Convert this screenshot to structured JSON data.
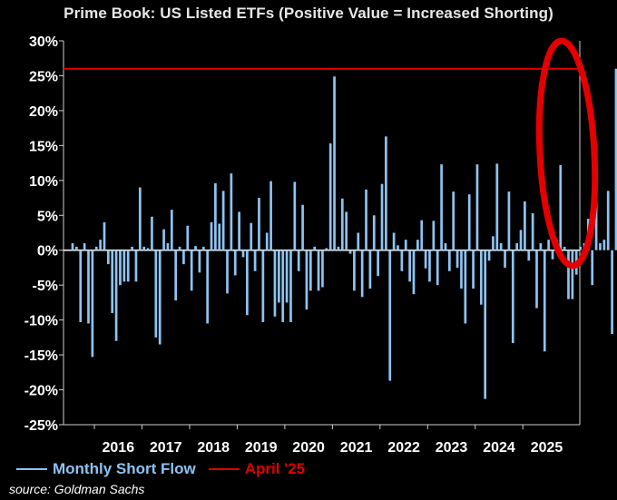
{
  "chart_data": {
    "type": "bar",
    "title": "Prime Book: US Listed ETFs (Positive Value = Increased Shorting)",
    "xlabel": "",
    "ylabel": "",
    "ylim": [
      -25,
      30
    ],
    "y_ticks": [
      30,
      25,
      20,
      15,
      10,
      5,
      0,
      -5,
      -10,
      -15,
      -20,
      -25
    ],
    "y_tick_labels": [
      "30%",
      "25%",
      "20%",
      "15%",
      "10%",
      "5%",
      "0%",
      "-5%",
      "-10%",
      "-15%",
      "-20%",
      "-25%"
    ],
    "x_ticks": [
      "2016",
      "2017",
      "2018",
      "2019",
      "2020",
      "2021",
      "2022",
      "2023",
      "2024",
      "2025"
    ],
    "series": [
      {
        "name": "Monthly Short Flow",
        "color": "#8ec3f2",
        "start": "2015-07",
        "frequency": "monthly",
        "values": [
          1,
          0.5,
          -10.3,
          1,
          -10.5,
          -15.3,
          0.5,
          1.5,
          4,
          -2,
          -9,
          -13,
          -5,
          -4.5,
          -4.5,
          0.5,
          -4.5,
          9,
          0.5,
          0.3,
          4.8,
          -12.5,
          -13.5,
          3,
          1,
          5.8,
          -7.2,
          0.5,
          -2,
          3.5,
          -5.8,
          0.6,
          -3.2,
          0.5,
          -10.5,
          4,
          9.6,
          3.8,
          8.5,
          -6.2,
          11,
          -3.6,
          5.5,
          -1,
          -9.3,
          3.9,
          -3,
          7.5,
          -10.3,
          2.5,
          9.9,
          -9.5,
          -7.5,
          -10.3,
          -7.5,
          -10.3,
          9.8,
          -3,
          6.5,
          -8.5,
          -5.8,
          0.5,
          -5.8,
          -5.3,
          0.3,
          15.3,
          24.9,
          0.5,
          7.4,
          5.5,
          -0.5,
          -5.8,
          2.5,
          -6.7,
          8.7,
          -5.5,
          5,
          -3.7,
          9.5,
          16.3,
          -18.7,
          2.5,
          0.7,
          -3,
          1.5,
          -4.5,
          -6.3,
          1.5,
          4.3,
          -2.6,
          -4.5,
          4.2,
          -5,
          12.3,
          1,
          -3,
          8.4,
          -2.5,
          -5.5,
          -10.5,
          8,
          -5.5,
          12.3,
          -7.8,
          -21.3,
          -1.5,
          2,
          12.4,
          1,
          -2.5,
          8.4,
          -13.3,
          1,
          2.9,
          7,
          -1.5,
          5.3,
          -8.3,
          1,
          -14.5,
          1.5,
          -1.3,
          1.5,
          12.2,
          0.5,
          -7,
          -7,
          -3.5,
          0.5,
          1,
          4.5,
          -5,
          14.3,
          1,
          1.5,
          8.5,
          -12,
          26
        ]
      },
      {
        "name": "April '25",
        "color": "#e00000",
        "type": "hline",
        "value": 26
      }
    ],
    "annotation": "red ellipse highlighting 2025 bars"
  },
  "legend": {
    "series_label": "Monthly Short Flow",
    "line_label": "April '25"
  },
  "source_text": "source: Goldman Sachs"
}
